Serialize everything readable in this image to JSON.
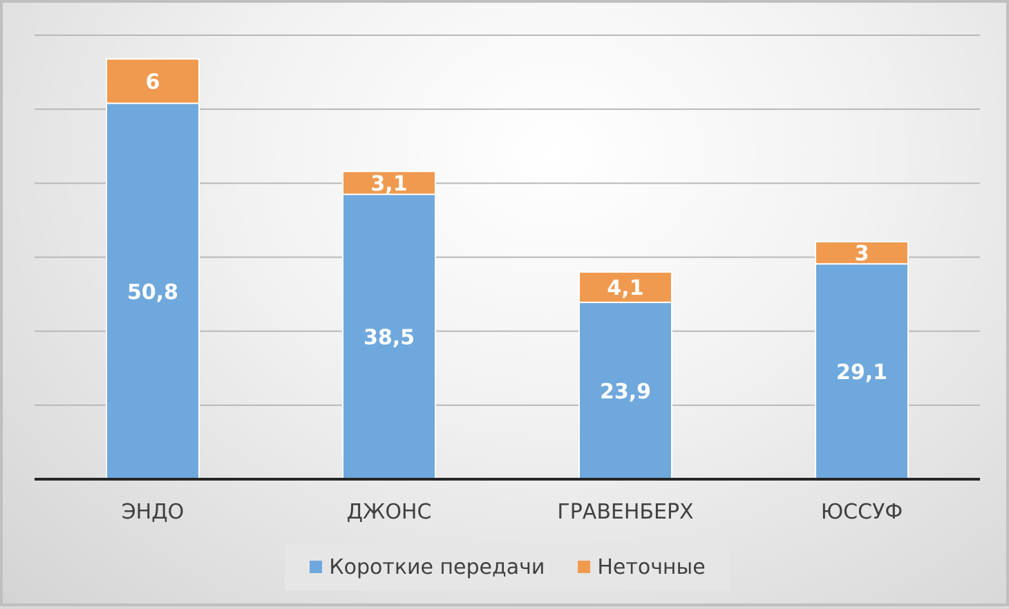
{
  "chart_data": {
    "type": "bar",
    "stacked": true,
    "title": "",
    "xlabel": "",
    "ylabel": "",
    "ylim": [
      0,
      60
    ],
    "grid": true,
    "legend_position": "bottom",
    "categories": [
      "ЭНДО",
      "ДЖОНС",
      "ГРАВЕНБЕРХ",
      "ЮССУФ"
    ],
    "series": [
      {
        "name": "Короткие передачи",
        "color": "#6fa8dc",
        "values": [
          50.8,
          38.5,
          23.9,
          29.1
        ],
        "labels": [
          "50,8",
          "38,5",
          "23,9",
          "29,1"
        ]
      },
      {
        "name": "Неточные",
        "color": "#f09a50",
        "values": [
          6,
          3.1,
          4.1,
          3
        ],
        "labels": [
          "6",
          "3,1",
          "4,1",
          "3"
        ]
      }
    ]
  }
}
